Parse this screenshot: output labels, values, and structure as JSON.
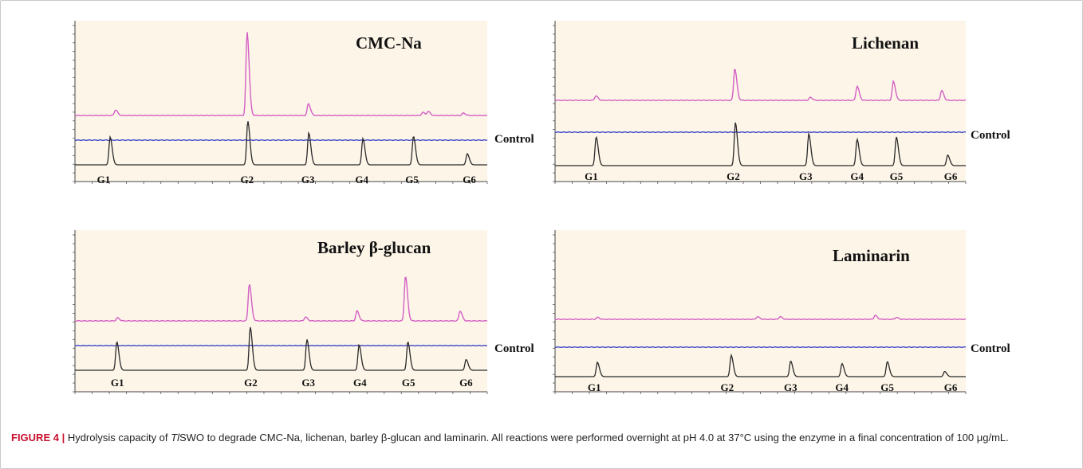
{
  "figure": {
    "label": "FIGURE 4 |",
    "caption_1": " Hydrolysis capacity of ",
    "caption_italic": "Tl",
    "caption_2": "SWO to degrade CMC-Na, lichenan, barley β-glucan and laminarin. All reactions were performed overnight at pH 4.0 at 37°C using the enzyme in a final concentration of 100 μg/mL."
  },
  "colors": {
    "sample_trace": "#d45fc4",
    "control_trace": "#3f48c8",
    "standard_trace": "#2a2a2a",
    "plot_background": "#fdf5e8"
  },
  "panels": [
    {
      "id": "cmc",
      "title": "CMC-Na",
      "control_label": "Control",
      "standard_labels": [
        "G1",
        "G2",
        "G3",
        "G4",
        "G5",
        "G6"
      ],
      "sample_peaks": [
        {
          "x": 0.113,
          "h": 7
        },
        {
          "x": 0.48,
          "h": 105
        },
        {
          "x": 0.651,
          "h": 15
        },
        {
          "x": 0.97,
          "h": 4
        },
        {
          "x": 0.985,
          "h": 5
        },
        {
          "x": 1.083,
          "h": 3
        }
      ],
      "standard_peaks": [
        {
          "x": 0.098,
          "h": 35
        },
        {
          "x": 0.482,
          "h": 55
        },
        {
          "x": 0.652,
          "h": 40
        },
        {
          "x": 0.803,
          "h": 33
        },
        {
          "x": 0.944,
          "h": 36
        },
        {
          "x": 1.094,
          "h": 14
        }
      ],
      "standard_x_labels": [
        0.08,
        0.48,
        0.65,
        0.8,
        0.94,
        1.1
      ]
    },
    {
      "id": "lichenan",
      "title": "Lichenan",
      "control_label": "Control",
      "standard_labels": [
        "G1",
        "G2",
        "G3",
        "G4",
        "G5",
        "G6"
      ],
      "sample_peaks": [
        {
          "x": 0.135,
          "h": 6
        },
        {
          "x": 0.595,
          "h": 42
        },
        {
          "x": 0.845,
          "h": 4
        },
        {
          "x": 1.0,
          "h": 19
        },
        {
          "x": 1.12,
          "h": 25
        },
        {
          "x": 1.28,
          "h": 13
        }
      ],
      "standard_peaks": [
        {
          "x": 0.136,
          "h": 38
        },
        {
          "x": 0.597,
          "h": 57
        },
        {
          "x": 0.84,
          "h": 42
        },
        {
          "x": 1.0,
          "h": 35
        },
        {
          "x": 1.13,
          "h": 38
        },
        {
          "x": 1.3,
          "h": 14
        }
      ],
      "standard_x_labels": [
        0.12,
        0.59,
        0.83,
        1.0,
        1.13,
        1.31
      ]
    },
    {
      "id": "barley",
      "title": "Barley β-glucan",
      "control_label": "Control",
      "standard_labels": [
        "G1",
        "G2",
        "G3",
        "G4",
        "G5",
        "G6"
      ],
      "sample_peaks": [
        {
          "x": 0.14,
          "h": 4
        },
        {
          "x": 0.575,
          "h": 48
        },
        {
          "x": 0.76,
          "h": 5
        },
        {
          "x": 0.93,
          "h": 13
        },
        {
          "x": 1.09,
          "h": 58
        },
        {
          "x": 1.27,
          "h": 13
        }
      ],
      "standard_peaks": [
        {
          "x": 0.138,
          "h": 37
        },
        {
          "x": 0.578,
          "h": 56
        },
        {
          "x": 0.765,
          "h": 40
        },
        {
          "x": 0.937,
          "h": 33
        },
        {
          "x": 1.098,
          "h": 37
        },
        {
          "x": 1.29,
          "h": 14
        }
      ],
      "standard_x_labels": [
        0.14,
        0.58,
        0.77,
        0.94,
        1.1,
        1.29
      ]
    },
    {
      "id": "laminarin",
      "title": "Laminarin",
      "control_label": "Control",
      "standard_labels": [
        "G1",
        "G2",
        "G3",
        "G4",
        "G5",
        "G6"
      ],
      "sample_peaks": [
        {
          "x": 0.14,
          "h": 3
        },
        {
          "x": 0.67,
          "h": 4
        },
        {
          "x": 0.745,
          "h": 4
        },
        {
          "x": 1.06,
          "h": 6
        },
        {
          "x": 1.13,
          "h": 3
        }
      ],
      "standard_peaks": [
        {
          "x": 0.14,
          "h": 22
        },
        {
          "x": 0.583,
          "h": 33
        },
        {
          "x": 0.78,
          "h": 24
        },
        {
          "x": 0.95,
          "h": 20
        },
        {
          "x": 1.1,
          "h": 23
        },
        {
          "x": 1.29,
          "h": 8
        }
      ],
      "standard_x_labels": [
        0.13,
        0.57,
        0.78,
        0.95,
        1.1,
        1.31
      ]
    }
  ]
}
